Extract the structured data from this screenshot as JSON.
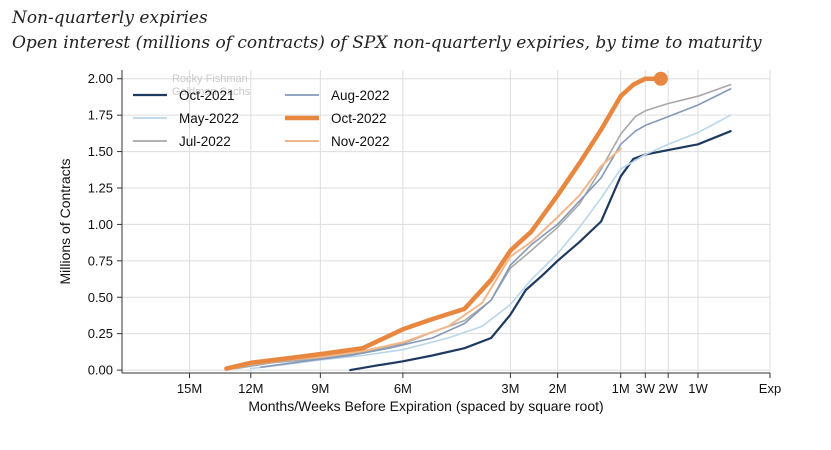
{
  "header": {
    "title": "Non-quarterly expiries",
    "subtitle": "Open interest (millions of contracts) of SPX non-quarterly expiries, by time to maturity"
  },
  "watermark": [
    "Rocky Fishman",
    "Goldman Sachs"
  ],
  "chart_data": {
    "type": "line",
    "xlabel": "Months/Weeks Before Expiration (spaced by square root)",
    "ylabel": "Millions of Contracts",
    "x_scale": "sqrt",
    "x_unit": "weeks before expiration",
    "xlim": [
      81,
      0
    ],
    "ylim": [
      -0.02,
      2.06
    ],
    "grid": true,
    "legend_position": "top-left",
    "x_ticks": [
      {
        "label": "15M",
        "weeks": 65
      },
      {
        "label": "12M",
        "weeks": 52
      },
      {
        "label": "9M",
        "weeks": 39
      },
      {
        "label": "6M",
        "weeks": 26
      },
      {
        "label": "3M",
        "weeks": 13
      },
      {
        "label": "2M",
        "weeks": 8.7
      },
      {
        "label": "1M",
        "weeks": 4.3
      },
      {
        "label": "3W",
        "weeks": 3
      },
      {
        "label": "2W",
        "weeks": 2
      },
      {
        "label": "1W",
        "weeks": 1
      },
      {
        "label": "Exp",
        "weeks": 0
      }
    ],
    "y_ticks": [
      "0.00",
      "0.25",
      "0.50",
      "0.75",
      "1.00",
      "1.25",
      "1.50",
      "1.75",
      "2.00"
    ],
    "y_tick_values": [
      0,
      0.25,
      0.5,
      0.75,
      1.0,
      1.25,
      1.5,
      1.75,
      2.0
    ],
    "series": [
      {
        "name": "Oct-2021",
        "color": "#1f3a5f",
        "width": 2.2,
        "x": [
          34,
          30,
          26,
          22,
          18,
          15,
          13,
          11.5,
          10,
          8.7,
          7,
          5.5,
          4.3,
          3.6,
          3,
          2,
          1,
          0.3
        ],
        "y": [
          0.0,
          0.03,
          0.06,
          0.1,
          0.15,
          0.22,
          0.38,
          0.55,
          0.65,
          0.75,
          0.88,
          1.02,
          1.33,
          1.45,
          1.48,
          1.51,
          1.55,
          1.64
        ]
      },
      {
        "name": "May-2022",
        "color": "#b9d6ea",
        "width": 1.6,
        "x": [
          52,
          45,
          39,
          32,
          26,
          20,
          16,
          13,
          11,
          8.7,
          7,
          5.5,
          4.3,
          3,
          2,
          1,
          0.3
        ],
        "y": [
          0.01,
          0.04,
          0.07,
          0.1,
          0.14,
          0.22,
          0.3,
          0.45,
          0.62,
          0.8,
          0.98,
          1.18,
          1.38,
          1.48,
          1.55,
          1.63,
          1.75
        ]
      },
      {
        "name": "Jul-2022",
        "color": "#a8a8a8",
        "width": 1.6,
        "x": [
          55,
          48,
          39,
          32,
          26,
          22,
          18,
          15,
          13,
          11,
          8.7,
          7,
          5.5,
          4.3,
          3.5,
          3,
          2,
          1,
          0.3
        ],
        "y": [
          0.01,
          0.05,
          0.08,
          0.12,
          0.18,
          0.26,
          0.34,
          0.48,
          0.7,
          0.82,
          0.98,
          1.14,
          1.38,
          1.62,
          1.74,
          1.78,
          1.83,
          1.88,
          1.96
        ]
      },
      {
        "name": "Aug-2022",
        "color": "#8599b8",
        "width": 1.6,
        "x": [
          50,
          42,
          34,
          28,
          22,
          18,
          15,
          13,
          11,
          8.7,
          7,
          5.5,
          4.3,
          3.5,
          3,
          2,
          1,
          0.3
        ],
        "y": [
          0.02,
          0.06,
          0.1,
          0.15,
          0.22,
          0.32,
          0.48,
          0.72,
          0.86,
          1.0,
          1.16,
          1.32,
          1.55,
          1.64,
          1.68,
          1.74,
          1.82,
          1.93
        ]
      },
      {
        "name": "Nov-2022",
        "color": "#f2b78a",
        "width": 2.0,
        "x": [
          57,
          52,
          45,
          39,
          32,
          26,
          20,
          16,
          13,
          11,
          8.7,
          7,
          5.5,
          4.3
        ],
        "y": [
          0.0,
          0.04,
          0.07,
          0.09,
          0.13,
          0.19,
          0.3,
          0.46,
          0.78,
          0.88,
          1.05,
          1.2,
          1.4,
          1.52
        ]
      },
      {
        "name": "Oct-2022",
        "color": "#e88740",
        "width": 4.5,
        "x": [
          57,
          52,
          45,
          39,
          32,
          26,
          22,
          18,
          15,
          13,
          11,
          8.7,
          7,
          5.5,
          4.3,
          3.6,
          3,
          2.6,
          2.3
        ],
        "y": [
          0.01,
          0.05,
          0.08,
          0.11,
          0.15,
          0.28,
          0.35,
          0.42,
          0.62,
          0.82,
          0.95,
          1.2,
          1.42,
          1.65,
          1.88,
          1.96,
          2.0,
          2.0,
          2.0
        ]
      }
    ],
    "legend_order": [
      "Oct-2021",
      "Aug-2022",
      "May-2022",
      "Oct-2022",
      "Jul-2022",
      "Nov-2022"
    ]
  }
}
